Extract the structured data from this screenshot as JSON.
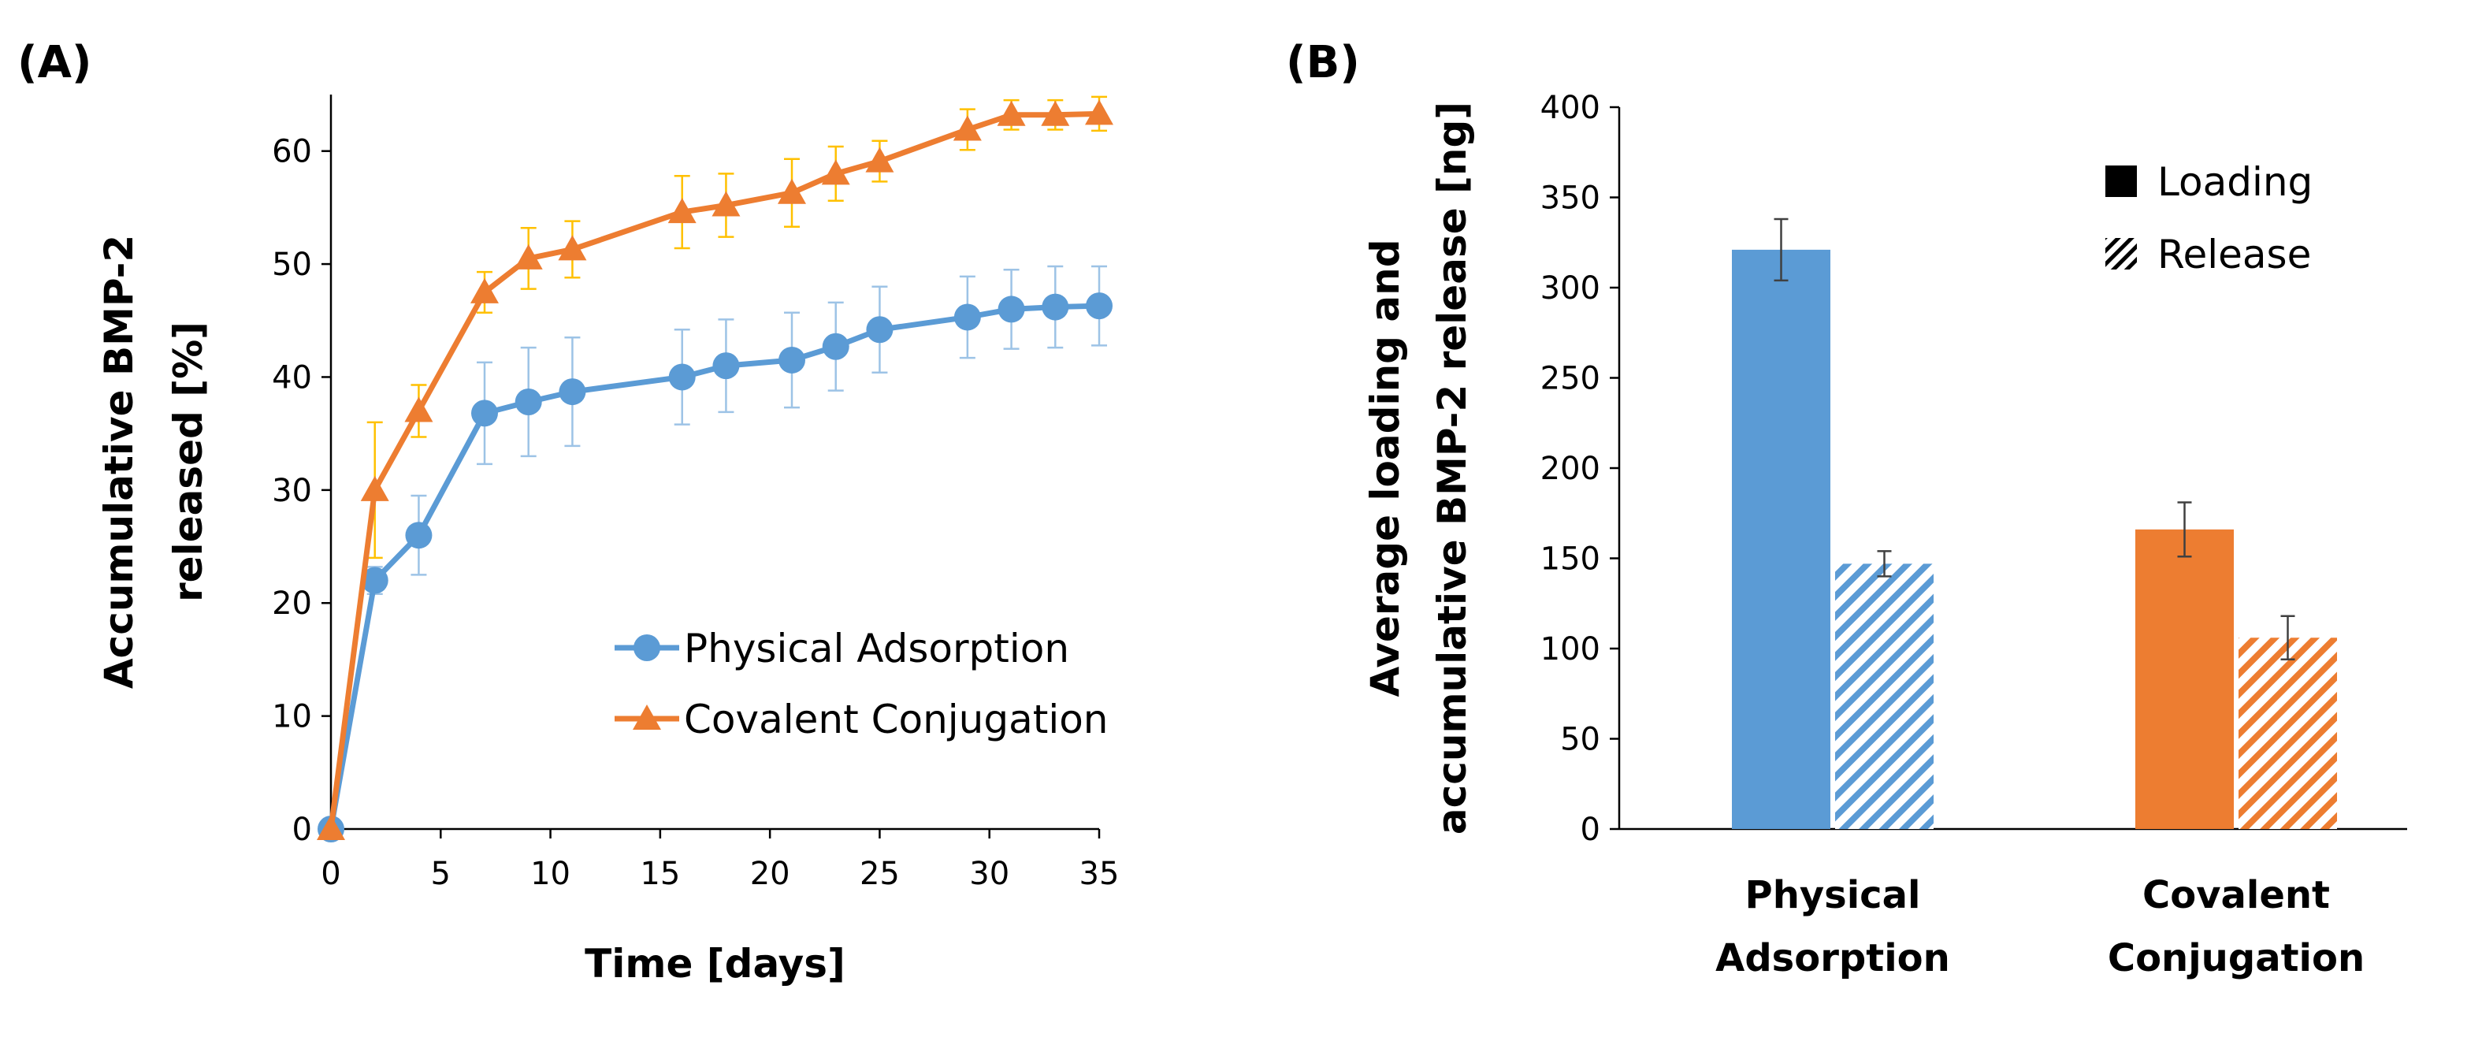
{
  "figure": {
    "panel_a_label": "(A)",
    "panel_b_label": "(B)"
  },
  "colors": {
    "physical": "#5B9BD5",
    "covalent": "#ED7D31",
    "physical_error": "#9DC3E6",
    "covalent_error": "#FFC000",
    "bar_error": "#404040",
    "axis": "#000000"
  },
  "chart_data": [
    {
      "type": "line",
      "title": "",
      "xlabel": "Time [days]",
      "ylabel_lines": [
        "Accumulative BMP-2",
        "released [%]"
      ],
      "xlim": [
        0,
        35
      ],
      "ylim": [
        0,
        65
      ],
      "xticks": [
        0,
        5,
        10,
        15,
        20,
        25,
        30,
        35
      ],
      "yticks": [
        0,
        10,
        20,
        30,
        40,
        50,
        60
      ],
      "legend_position": "bottom-right",
      "series": [
        {
          "name": "Physical Adsorption",
          "marker": "circle",
          "x": [
            0,
            2,
            4,
            7,
            9,
            11,
            16,
            18,
            21,
            23,
            25,
            29,
            31,
            33,
            35
          ],
          "y": [
            0,
            22,
            26,
            36.8,
            37.8,
            38.7,
            40,
            41,
            41.5,
            42.7,
            44.2,
            45.3,
            46,
            46.2,
            46.3
          ],
          "error": [
            0,
            1.2,
            3.5,
            4.5,
            4.8,
            4.8,
            4.2,
            4.1,
            4.2,
            3.9,
            3.8,
            3.6,
            3.5,
            3.6,
            3.5
          ]
        },
        {
          "name": "Covalent Conjugation",
          "marker": "triangle",
          "x": [
            0,
            2,
            4,
            7,
            9,
            11,
            16,
            18,
            21,
            23,
            25,
            29,
            31,
            33,
            35
          ],
          "y": [
            0,
            30,
            37,
            47.5,
            50.5,
            51.3,
            54.6,
            55.2,
            56.3,
            58,
            59.1,
            61.9,
            63.2,
            63.2,
            63.3
          ],
          "error": [
            0,
            6,
            2.3,
            1.8,
            2.7,
            2.5,
            3.2,
            2.8,
            3,
            2.4,
            1.8,
            1.8,
            1.3,
            1.3,
            1.5
          ]
        }
      ]
    },
    {
      "type": "bar",
      "title": "",
      "xlabel": "",
      "ylabel_lines": [
        "Average loading and",
        "accumulative BMP-2 release [ng]"
      ],
      "ylim": [
        0,
        400
      ],
      "yticks": [
        0,
        50,
        100,
        150,
        200,
        250,
        300,
        350,
        400
      ],
      "categories": [
        {
          "line1": "Physical",
          "line2": "Adsorption"
        },
        {
          "line1": "Covalent",
          "line2": "Conjugation"
        }
      ],
      "legend_position": "top-right",
      "series": [
        {
          "name": "Loading",
          "pattern": "solid",
          "values": [
            321,
            166
          ],
          "error": [
            17,
            15
          ]
        },
        {
          "name": "Release",
          "pattern": "hatched",
          "values": [
            147,
            106
          ],
          "error": [
            7,
            12
          ]
        }
      ]
    }
  ]
}
